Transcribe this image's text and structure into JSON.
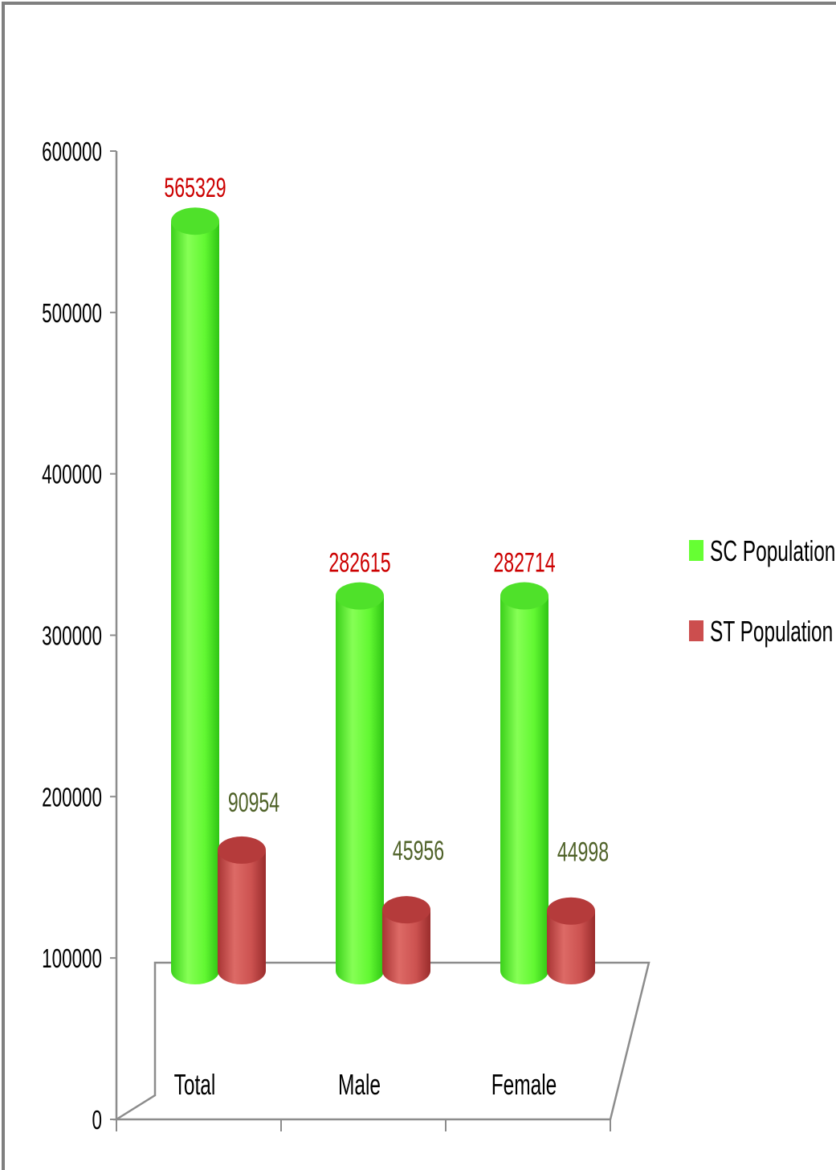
{
  "chart_data": {
    "type": "bar",
    "style": "3d-cylinder",
    "categories": [
      "Total",
      "Male",
      "Female"
    ],
    "series": [
      {
        "name": "SC Population",
        "color": "#66ff33",
        "label_color": "#cc0000",
        "values": [
          565329,
          282615,
          282714
        ]
      },
      {
        "name": "ST Population",
        "color": "#cc4e4e",
        "label_color": "#4f6228",
        "values": [
          90954,
          45956,
          44998
        ]
      }
    ],
    "ylim": [
      0,
      600000
    ],
    "yticks": [
      0,
      100000,
      200000,
      300000,
      400000,
      500000,
      600000
    ],
    "ytick_labels": [
      "0",
      "100000",
      "200000",
      "300000",
      "400000",
      "500000",
      "600000"
    ],
    "grid": false,
    "legend_position": "right",
    "title": "",
    "xlabel": "",
    "ylabel": ""
  }
}
